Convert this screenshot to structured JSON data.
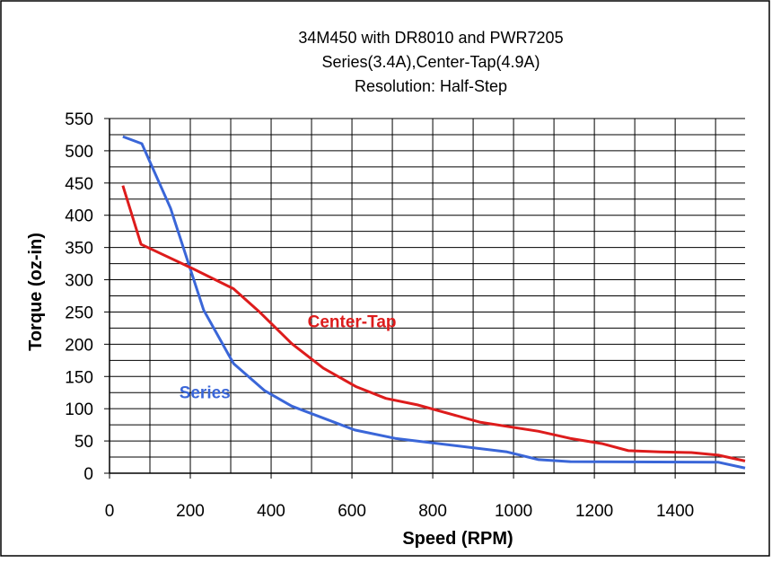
{
  "chart_data": {
    "type": "line",
    "title": [
      "34M450 with DR8010 and PWR7205",
      "Series(3.4A),Center-Tap(4.9A)",
      "Resolution: Half-Step"
    ],
    "x_label": "Speed (RPM)",
    "y_label": "Torque (oz-in)",
    "xlim": [
      0,
      1573
    ],
    "ylim": [
      0,
      550
    ],
    "xticks": [
      0,
      200,
      400,
      600,
      800,
      1000,
      1200,
      1400
    ],
    "x_minor_ticks": [
      100,
      300,
      500,
      700,
      900,
      1100,
      1300,
      1500
    ],
    "yticks": [
      0,
      50,
      100,
      150,
      200,
      250,
      300,
      350,
      400,
      450,
      500,
      550
    ],
    "y_minor_ticks": [
      25,
      75,
      125,
      175,
      225,
      275,
      325,
      375,
      425,
      475,
      525
    ],
    "grid": true,
    "series": [
      {
        "name": "Series",
        "color": "#3a66d8",
        "x": [
          33,
          80,
          151,
          233,
          307,
          384,
          451,
          607,
          707,
          984,
          1062,
          1140,
          1507,
          1573
        ],
        "values": [
          522,
          511,
          411,
          253,
          170,
          128,
          104,
          67,
          54,
          33,
          21,
          18,
          17,
          8
        ],
        "label_at": [
          236,
          116
        ]
      },
      {
        "name": "Center-Tap",
        "color": "#dd1c1c",
        "x": [
          33,
          78,
          207,
          307,
          373,
          451,
          529,
          611,
          684,
          762,
          918,
          1062,
          1140,
          1218,
          1284,
          1362,
          1440,
          1507,
          1573
        ],
        "values": [
          446,
          355,
          317,
          286,
          249,
          201,
          163,
          134,
          116,
          106,
          79,
          65,
          54,
          46,
          35,
          33,
          32,
          28,
          19
        ],
        "label_at": [
          600,
          226
        ]
      }
    ]
  }
}
